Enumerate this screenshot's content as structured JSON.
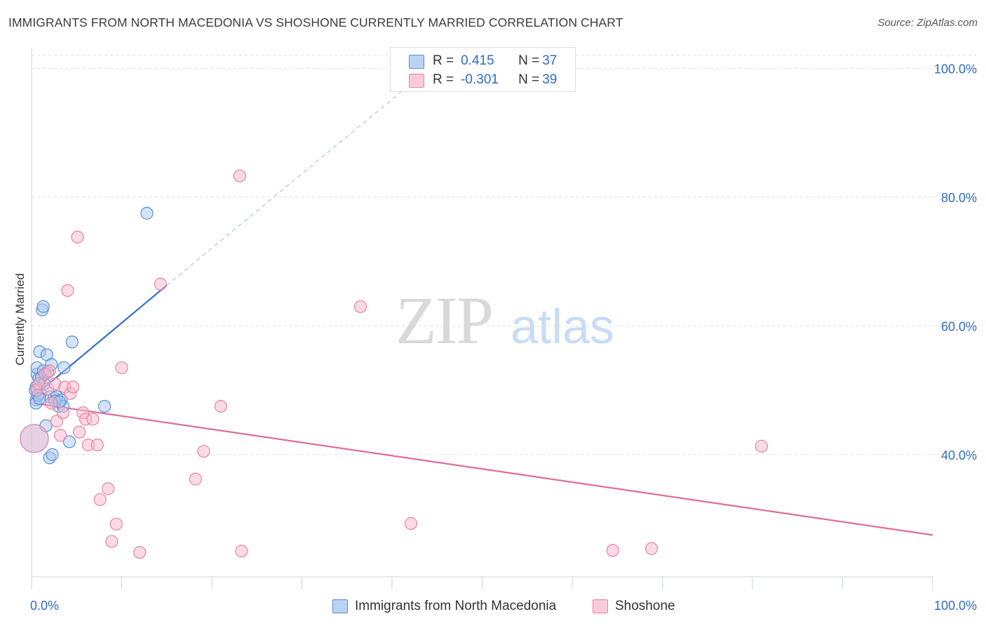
{
  "title": "IMMIGRANTS FROM NORTH MACEDONIA VS SHOSHONE CURRENTLY MARRIED CORRELATION CHART",
  "source": "Source: ZipAtlas.com",
  "watermark": {
    "zip": "ZIP",
    "atlas": "atlas"
  },
  "colors": {
    "blue_fill": "#a9c8f0",
    "blue_stroke": "#5b8fd6",
    "blue_line": "#2f6fcd",
    "pink_fill": "#f6b8cb",
    "pink_stroke": "#e8839f",
    "pink_line": "#e06c98",
    "axis_label": "#2e6cc8",
    "grid": "#dde1e6"
  },
  "legend": {
    "rows": [
      {
        "r_label": "R = ",
        "r_value": " 0.415",
        "n_label": "N = ",
        "n_value": "37"
      },
      {
        "r_label": "R = ",
        "r_value": "-0.301",
        "n_label": "N = ",
        "n_value": "39"
      }
    ]
  },
  "chart_data": {
    "type": "scatter",
    "title": "IMMIGRANTS FROM NORTH MACEDONIA VS SHOSHONE CURRENTLY MARRIED CORRELATION CHART",
    "xlabel": "",
    "ylabel": "Currently Married",
    "xlim": [
      0,
      100
    ],
    "ylim": [
      21,
      103
    ],
    "x_tick_labels": [
      "0.0%",
      "100.0%"
    ],
    "y_ticks": [
      40,
      60,
      80,
      100
    ],
    "y_tick_labels": [
      "40.0%",
      "60.0%",
      "80.0%",
      "100.0%"
    ],
    "grid": true,
    "legend_position": "top-center",
    "series": [
      {
        "name": "Immigrants from North Macedonia",
        "color": "blue",
        "R": 0.415,
        "N": 37,
        "trend": {
          "x0": 0.2,
          "y0": 49.0,
          "x1": 15.0,
          "y1": 66.3,
          "dash_to_x": 42.0,
          "dash_to_y": 97.5
        },
        "points": [
          [
            0.3,
            42.5,
            "big"
          ],
          [
            0.5,
            48.5
          ],
          [
            0.5,
            48.0
          ],
          [
            0.5,
            50.5
          ],
          [
            0.6,
            52.5
          ],
          [
            0.6,
            53.5
          ],
          [
            0.8,
            51.8
          ],
          [
            0.9,
            56.0
          ],
          [
            1.0,
            49.5
          ],
          [
            1.1,
            52.0
          ],
          [
            1.2,
            62.5
          ],
          [
            1.3,
            63.0
          ],
          [
            1.3,
            53.0
          ],
          [
            1.5,
            52.5
          ],
          [
            1.6,
            44.5
          ],
          [
            1.7,
            55.5
          ],
          [
            1.8,
            52.8
          ],
          [
            2.0,
            49.0
          ],
          [
            2.0,
            39.5
          ],
          [
            2.2,
            54.0
          ],
          [
            2.3,
            40.0
          ],
          [
            2.5,
            48.8
          ],
          [
            2.8,
            49.0
          ],
          [
            3.0,
            47.5
          ],
          [
            3.3,
            48.5
          ],
          [
            3.5,
            47.5
          ],
          [
            3.6,
            53.5
          ],
          [
            4.2,
            42.0
          ],
          [
            4.5,
            57.5
          ],
          [
            8.1,
            47.5
          ],
          [
            12.8,
            77.5
          ],
          [
            0.4,
            50.0
          ],
          [
            0.7,
            49.2
          ],
          [
            1.4,
            51.0
          ],
          [
            2.6,
            48.3
          ],
          [
            3.1,
            48.2
          ],
          [
            0.9,
            48.7
          ]
        ]
      },
      {
        "name": "Shoshone",
        "color": "pink",
        "R": -0.301,
        "N": 39,
        "trend": {
          "x0": 0.2,
          "y0": 48.0,
          "x1": 100.0,
          "y1": 27.5
        },
        "points": [
          [
            0.3,
            42.5,
            "big"
          ],
          [
            0.6,
            50.0
          ],
          [
            0.8,
            51.0
          ],
          [
            1.5,
            52.5
          ],
          [
            1.8,
            50.2
          ],
          [
            2.0,
            53.0
          ],
          [
            2.2,
            48.0
          ],
          [
            2.6,
            51.0
          ],
          [
            2.8,
            45.2
          ],
          [
            3.2,
            43.0
          ],
          [
            3.5,
            46.5
          ],
          [
            3.7,
            50.5
          ],
          [
            4.0,
            65.5
          ],
          [
            4.3,
            49.5
          ],
          [
            4.6,
            50.5
          ],
          [
            5.1,
            73.8
          ],
          [
            5.3,
            43.5
          ],
          [
            5.7,
            46.5
          ],
          [
            6.0,
            45.5
          ],
          [
            6.3,
            41.5
          ],
          [
            6.8,
            45.5
          ],
          [
            7.3,
            41.5
          ],
          [
            7.6,
            33.0
          ],
          [
            8.5,
            34.7
          ],
          [
            8.9,
            26.5
          ],
          [
            9.4,
            29.2
          ],
          [
            10.0,
            53.5
          ],
          [
            12.0,
            24.8
          ],
          [
            14.3,
            66.5
          ],
          [
            18.2,
            36.2
          ],
          [
            19.1,
            40.5
          ],
          [
            21.0,
            47.5
          ],
          [
            23.1,
            83.3
          ],
          [
            23.3,
            25.0
          ],
          [
            36.5,
            63.0
          ],
          [
            42.1,
            29.3
          ],
          [
            64.5,
            25.1
          ],
          [
            68.8,
            25.4
          ],
          [
            81.0,
            41.3
          ]
        ]
      }
    ]
  }
}
